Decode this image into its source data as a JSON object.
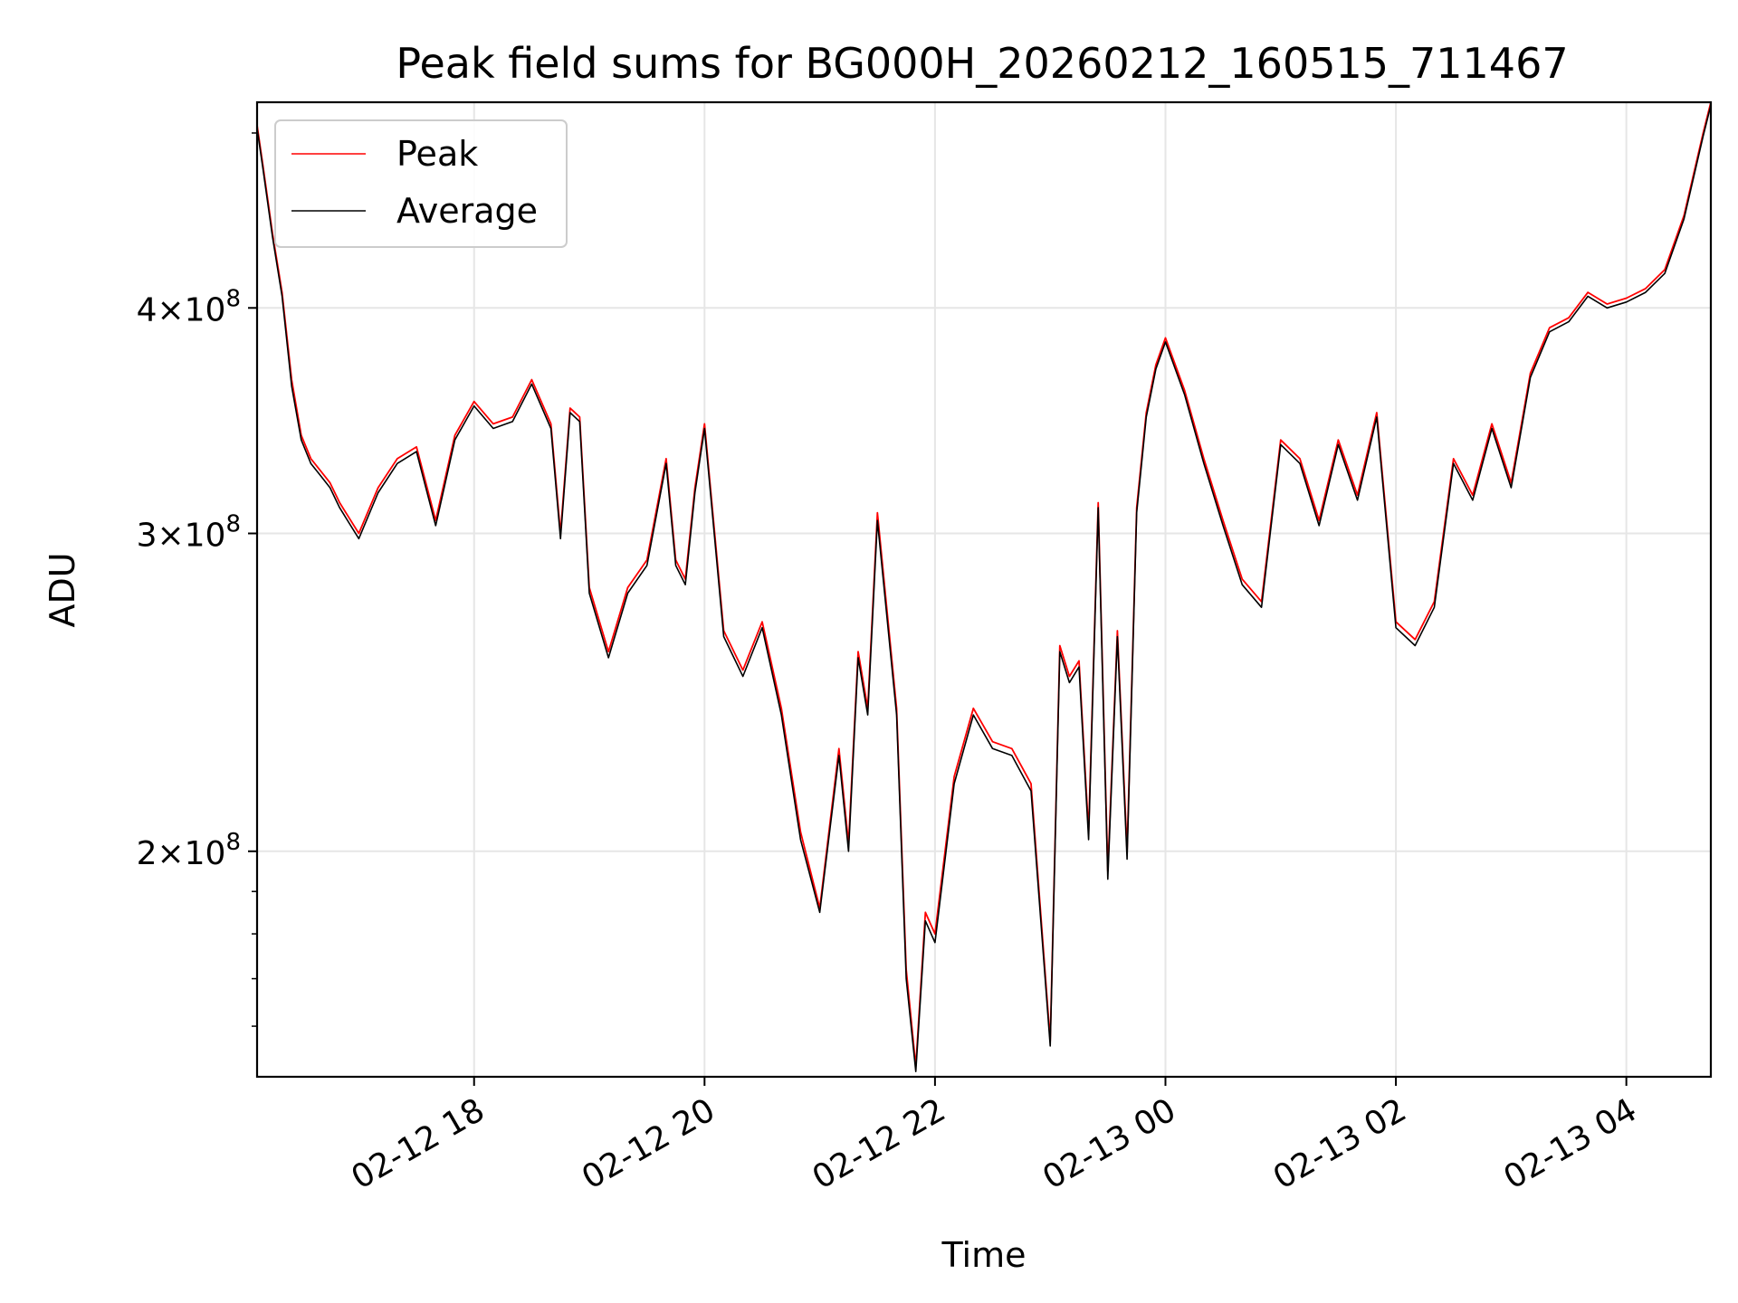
{
  "chart_data": {
    "type": "line",
    "title": "Peak field sums for BG000H_20260212_160515_711467",
    "xlabel": "Time",
    "ylabel": "ADU",
    "y_scale": "log",
    "xlim": [
      "2026-02-12 16:07",
      "2026-02-13 04:44"
    ],
    "ylim": [
      150000000,
      520000000
    ],
    "x_ticks": [
      {
        "value": "2026-02-12 18:00",
        "label": "02-12 18"
      },
      {
        "value": "2026-02-12 20:00",
        "label": "02-12 20"
      },
      {
        "value": "2026-02-12 22:00",
        "label": "02-12 22"
      },
      {
        "value": "2026-02-13 00:00",
        "label": "02-13 00"
      },
      {
        "value": "2026-02-13 02:00",
        "label": "02-13 02"
      },
      {
        "value": "2026-02-13 04:00",
        "label": "02-13 04"
      }
    ],
    "y_ticks": [
      {
        "value": 200000000,
        "mantissa": "2",
        "exponent": "8"
      },
      {
        "value": 300000000,
        "mantissa": "3",
        "exponent": "8"
      },
      {
        "value": 400000000,
        "mantissa": "4",
        "exponent": "8"
      }
    ],
    "grid": true,
    "legend_position": "upper-left",
    "colors": {
      "peak": "#ff0000",
      "average": "#000000",
      "grid": "#e6e6e6"
    },
    "series": [
      {
        "name": "Peak",
        "color": "#ff0000",
        "x": [
          "2026-02-12 16:07",
          "2026-02-12 16:10",
          "2026-02-12 16:15",
          "2026-02-12 16:20",
          "2026-02-12 16:25",
          "2026-02-12 16:30",
          "2026-02-12 16:35",
          "2026-02-12 16:40",
          "2026-02-12 16:45",
          "2026-02-12 16:50",
          "2026-02-12 17:00",
          "2026-02-12 17:10",
          "2026-02-12 17:20",
          "2026-02-12 17:30",
          "2026-02-12 17:40",
          "2026-02-12 17:50",
          "2026-02-12 18:00",
          "2026-02-12 18:10",
          "2026-02-12 18:20",
          "2026-02-12 18:30",
          "2026-02-12 18:40",
          "2026-02-12 18:45",
          "2026-02-12 18:50",
          "2026-02-12 18:55",
          "2026-02-12 19:00",
          "2026-02-12 19:10",
          "2026-02-12 19:20",
          "2026-02-12 19:30",
          "2026-02-12 19:40",
          "2026-02-12 19:45",
          "2026-02-12 19:50",
          "2026-02-12 19:55",
          "2026-02-12 20:00",
          "2026-02-12 20:10",
          "2026-02-12 20:20",
          "2026-02-12 20:30",
          "2026-02-12 20:40",
          "2026-02-12 20:50",
          "2026-02-12 21:00",
          "2026-02-12 21:10",
          "2026-02-12 21:15",
          "2026-02-12 21:20",
          "2026-02-12 21:25",
          "2026-02-12 21:30",
          "2026-02-12 21:40",
          "2026-02-12 21:45",
          "2026-02-12 21:50",
          "2026-02-12 21:55",
          "2026-02-12 22:00",
          "2026-02-12 22:10",
          "2026-02-12 22:20",
          "2026-02-12 22:30",
          "2026-02-12 22:40",
          "2026-02-12 22:50",
          "2026-02-12 23:00",
          "2026-02-12 23:05",
          "2026-02-12 23:10",
          "2026-02-12 23:15",
          "2026-02-12 23:20",
          "2026-02-12 23:25",
          "2026-02-12 23:30",
          "2026-02-12 23:35",
          "2026-02-12 23:40",
          "2026-02-12 23:45",
          "2026-02-12 23:50",
          "2026-02-12 23:55",
          "2026-02-13 00:00",
          "2026-02-13 00:10",
          "2026-02-13 00:20",
          "2026-02-13 00:30",
          "2026-02-13 00:40",
          "2026-02-13 00:50",
          "2026-02-13 01:00",
          "2026-02-13 01:10",
          "2026-02-13 01:20",
          "2026-02-13 01:30",
          "2026-02-13 01:40",
          "2026-02-13 01:50",
          "2026-02-13 02:00",
          "2026-02-13 02:10",
          "2026-02-13 02:20",
          "2026-02-13 02:30",
          "2026-02-13 02:40",
          "2026-02-13 02:50",
          "2026-02-13 03:00",
          "2026-02-13 03:10",
          "2026-02-13 03:20",
          "2026-02-13 03:30",
          "2026-02-13 03:40",
          "2026-02-13 03:50",
          "2026-02-13 04:00",
          "2026-02-13 04:10",
          "2026-02-13 04:20",
          "2026-02-13 04:30",
          "2026-02-13 04:40",
          "2026-02-13 04:44"
        ],
        "y": [
          505000000,
          480000000,
          440000000,
          408000000,
          365000000,
          340000000,
          330000000,
          325000000,
          320000000,
          312000000,
          300000000,
          318000000,
          330000000,
          335000000,
          305000000,
          340000000,
          355000000,
          345000000,
          348000000,
          365000000,
          345000000,
          300000000,
          352000000,
          348000000,
          280000000,
          258000000,
          280000000,
          290000000,
          330000000,
          290000000,
          283000000,
          318000000,
          345000000,
          265000000,
          252000000,
          268000000,
          240000000,
          205000000,
          186000000,
          228000000,
          202000000,
          258000000,
          240000000,
          308000000,
          240000000,
          172000000,
          152000000,
          185000000,
          180000000,
          220000000,
          240000000,
          230000000,
          228000000,
          218000000,
          157000000,
          260000000,
          250000000,
          255000000,
          205000000,
          312000000,
          195000000,
          265000000,
          200000000,
          310000000,
          350000000,
          372000000,
          385000000,
          360000000,
          330000000,
          305000000,
          283000000,
          275000000,
          338000000,
          330000000,
          305000000,
          338000000,
          315000000,
          350000000,
          268000000,
          262000000,
          275000000,
          330000000,
          315000000,
          345000000,
          320000000,
          368000000,
          390000000,
          395000000,
          408000000,
          402000000,
          405000000,
          410000000,
          420000000,
          450000000,
          500000000,
          520000000
        ]
      },
      {
        "name": "Average",
        "color": "#000000",
        "x": [
          "2026-02-12 16:07",
          "2026-02-12 16:10",
          "2026-02-12 16:15",
          "2026-02-12 16:20",
          "2026-02-12 16:25",
          "2026-02-12 16:30",
          "2026-02-12 16:35",
          "2026-02-12 16:40",
          "2026-02-12 16:45",
          "2026-02-12 16:50",
          "2026-02-12 17:00",
          "2026-02-12 17:10",
          "2026-02-12 17:20",
          "2026-02-12 17:30",
          "2026-02-12 17:40",
          "2026-02-12 17:50",
          "2026-02-12 18:00",
          "2026-02-12 18:10",
          "2026-02-12 18:20",
          "2026-02-12 18:30",
          "2026-02-12 18:40",
          "2026-02-12 18:45",
          "2026-02-12 18:50",
          "2026-02-12 18:55",
          "2026-02-12 19:00",
          "2026-02-12 19:10",
          "2026-02-12 19:20",
          "2026-02-12 19:30",
          "2026-02-12 19:40",
          "2026-02-12 19:45",
          "2026-02-12 19:50",
          "2026-02-12 19:55",
          "2026-02-12 20:00",
          "2026-02-12 20:10",
          "2026-02-12 20:20",
          "2026-02-12 20:30",
          "2026-02-12 20:40",
          "2026-02-12 20:50",
          "2026-02-12 21:00",
          "2026-02-12 21:10",
          "2026-02-12 21:15",
          "2026-02-12 21:20",
          "2026-02-12 21:25",
          "2026-02-12 21:30",
          "2026-02-12 21:40",
          "2026-02-12 21:45",
          "2026-02-12 21:50",
          "2026-02-12 21:55",
          "2026-02-12 22:00",
          "2026-02-12 22:10",
          "2026-02-12 22:20",
          "2026-02-12 22:30",
          "2026-02-12 22:40",
          "2026-02-12 22:50",
          "2026-02-12 23:00",
          "2026-02-12 23:05",
          "2026-02-12 23:10",
          "2026-02-12 23:15",
          "2026-02-12 23:20",
          "2026-02-12 23:25",
          "2026-02-12 23:30",
          "2026-02-12 23:35",
          "2026-02-12 23:40",
          "2026-02-12 23:45",
          "2026-02-12 23:50",
          "2026-02-12 23:55",
          "2026-02-13 00:00",
          "2026-02-13 00:10",
          "2026-02-13 00:20",
          "2026-02-13 00:30",
          "2026-02-13 00:40",
          "2026-02-13 00:50",
          "2026-02-13 01:00",
          "2026-02-13 01:10",
          "2026-02-13 01:20",
          "2026-02-13 01:30",
          "2026-02-13 01:40",
          "2026-02-13 01:50",
          "2026-02-13 02:00",
          "2026-02-13 02:10",
          "2026-02-13 02:20",
          "2026-02-13 02:30",
          "2026-02-13 02:40",
          "2026-02-13 02:50",
          "2026-02-13 03:00",
          "2026-02-13 03:10",
          "2026-02-13 03:20",
          "2026-02-13 03:30",
          "2026-02-13 03:40",
          "2026-02-13 03:50",
          "2026-02-13 04:00",
          "2026-02-13 04:10",
          "2026-02-13 04:20",
          "2026-02-13 04:30",
          "2026-02-13 04:40",
          "2026-02-13 04:44"
        ],
        "y": [
          503000000,
          478000000,
          438000000,
          406000000,
          362000000,
          338000000,
          328000000,
          323000000,
          318000000,
          310000000,
          298000000,
          316000000,
          328000000,
          333000000,
          303000000,
          338000000,
          353000000,
          343000000,
          346000000,
          363000000,
          343000000,
          298000000,
          350000000,
          346000000,
          278000000,
          256000000,
          278000000,
          288000000,
          328000000,
          288000000,
          281000000,
          316000000,
          343000000,
          263000000,
          250000000,
          266000000,
          238000000,
          203000000,
          185000000,
          226000000,
          200000000,
          256000000,
          238000000,
          305000000,
          238000000,
          170000000,
          151000000,
          183000000,
          178000000,
          218000000,
          238000000,
          228000000,
          226000000,
          216000000,
          156000000,
          258000000,
          248000000,
          253000000,
          203000000,
          310000000,
          193000000,
          263000000,
          198000000,
          308000000,
          348000000,
          370000000,
          383000000,
          358000000,
          328000000,
          303000000,
          281000000,
          273000000,
          336000000,
          328000000,
          303000000,
          336000000,
          313000000,
          348000000,
          266000000,
          260000000,
          273000000,
          328000000,
          313000000,
          343000000,
          318000000,
          366000000,
          388000000,
          393000000,
          406000000,
          400000000,
          403000000,
          408000000,
          418000000,
          448000000,
          498000000,
          518000000
        ]
      }
    ]
  }
}
